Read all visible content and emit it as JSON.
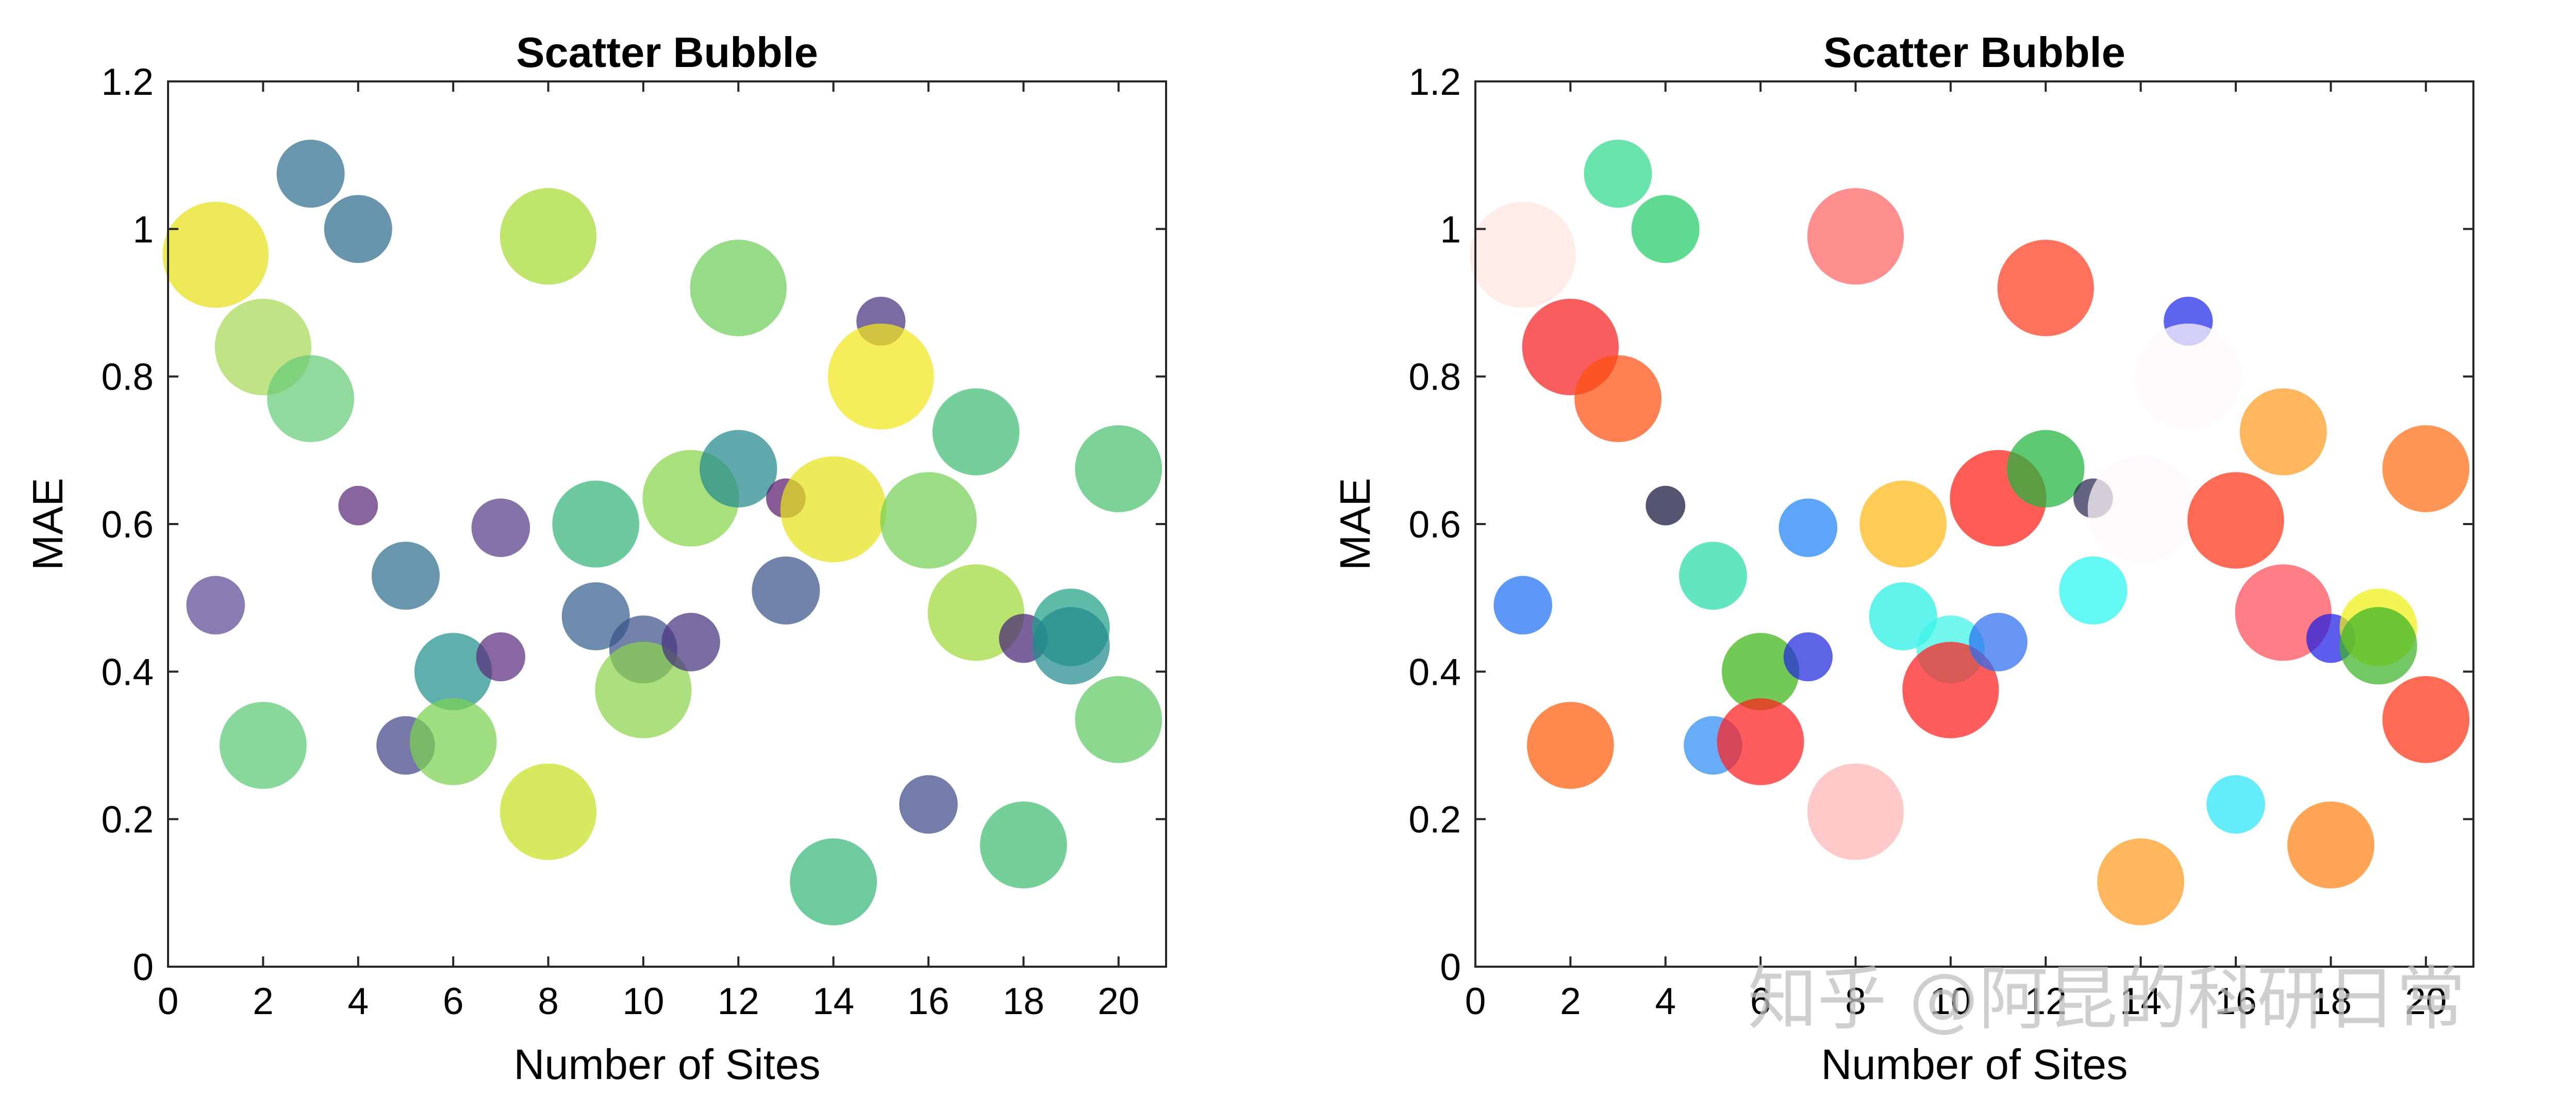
{
  "watermark": {
    "text": "知乎 @阿昆的科研日常",
    "color": "#bfbfbf"
  },
  "chart_data": [
    {
      "type": "scatter",
      "title": "Scatter Bubble",
      "xlabel": "Number of Sites",
      "ylabel": "MAE",
      "xlim": [
        0,
        21
      ],
      "ylim": [
        0,
        1.2
      ],
      "xticks": [
        "0",
        "2",
        "4",
        "6",
        "8",
        "10",
        "12",
        "14",
        "16",
        "18",
        "20"
      ],
      "yticks": [
        "0",
        "0.2",
        "0.4",
        "0.6",
        "0.8",
        "1",
        "1.2"
      ],
      "grid": false,
      "points": [
        {
          "x": 1,
          "y": 0.965,
          "size": 9,
          "color": "#e6e019"
        },
        {
          "x": 1,
          "y": 0.49,
          "size": 4,
          "color": "#5b4a95"
        },
        {
          "x": 2,
          "y": 0.84,
          "size": 8,
          "color": "#a6d856"
        },
        {
          "x": 2,
          "y": 0.3,
          "size": 7,
          "color": "#5ac775"
        },
        {
          "x": 3,
          "y": 1.075,
          "size": 5,
          "color": "#2f6f8e"
        },
        {
          "x": 3,
          "y": 0.77,
          "size": 7,
          "color": "#66cc77"
        },
        {
          "x": 4,
          "y": 1.0,
          "size": 5,
          "color": "#2e6b8c"
        },
        {
          "x": 4,
          "y": 0.625,
          "size": 2,
          "color": "#5a2a7a"
        },
        {
          "x": 5,
          "y": 0.53,
          "size": 5,
          "color": "#2e6e8e"
        },
        {
          "x": 5,
          "y": 0.3,
          "size": 4,
          "color": "#414487"
        },
        {
          "x": 6,
          "y": 0.4,
          "size": 6,
          "color": "#21918c"
        },
        {
          "x": 6,
          "y": 0.305,
          "size": 7,
          "color": "#7ad151"
        },
        {
          "x": 7,
          "y": 0.595,
          "size": 4,
          "color": "#563c89"
        },
        {
          "x": 7,
          "y": 0.42,
          "size": 3,
          "color": "#5a2c7e"
        },
        {
          "x": 8,
          "y": 0.99,
          "size": 8,
          "color": "#a8db34"
        },
        {
          "x": 8,
          "y": 0.21,
          "size": 8,
          "color": "#c8e020"
        },
        {
          "x": 9,
          "y": 0.6,
          "size": 7,
          "color": "#34b679"
        },
        {
          "x": 9,
          "y": 0.475,
          "size": 5,
          "color": "#355f8d"
        },
        {
          "x": 10,
          "y": 0.43,
          "size": 5,
          "color": "#3b528b"
        },
        {
          "x": 10,
          "y": 0.375,
          "size": 8,
          "color": "#8cd24c"
        },
        {
          "x": 11,
          "y": 0.635,
          "size": 8,
          "color": "#86d549"
        },
        {
          "x": 11,
          "y": 0.44,
          "size": 4,
          "color": "#46337e"
        },
        {
          "x": 12,
          "y": 0.92,
          "size": 8,
          "color": "#6ccd5a"
        },
        {
          "x": 12,
          "y": 0.675,
          "size": 6,
          "color": "#23898e"
        },
        {
          "x": 13,
          "y": 0.51,
          "size": 5,
          "color": "#3a538b"
        },
        {
          "x": 13,
          "y": 0.635,
          "size": 2,
          "color": "#5a1a6e"
        },
        {
          "x": 14,
          "y": 0.62,
          "size": 9,
          "color": "#e7e31a"
        },
        {
          "x": 14,
          "y": 0.115,
          "size": 7,
          "color": "#35b779"
        },
        {
          "x": 15,
          "y": 0.875,
          "size": 3,
          "color": "#46327e"
        },
        {
          "x": 15,
          "y": 0.8,
          "size": 9,
          "color": "#f2e61a"
        },
        {
          "x": 16,
          "y": 0.605,
          "size": 8,
          "color": "#75d054"
        },
        {
          "x": 16,
          "y": 0.22,
          "size": 4,
          "color": "#3e4a89"
        },
        {
          "x": 17,
          "y": 0.725,
          "size": 7,
          "color": "#3fbc73"
        },
        {
          "x": 17,
          "y": 0.48,
          "size": 8,
          "color": "#a0da39"
        },
        {
          "x": 18,
          "y": 0.445,
          "size": 3,
          "color": "#482677"
        },
        {
          "x": 18,
          "y": 0.165,
          "size": 7,
          "color": "#40bd72"
        },
        {
          "x": 19,
          "y": 0.46,
          "size": 6,
          "color": "#1fa187"
        },
        {
          "x": 19,
          "y": 0.435,
          "size": 6,
          "color": "#238a8d"
        },
        {
          "x": 20,
          "y": 0.675,
          "size": 7,
          "color": "#4ac16d"
        },
        {
          "x": 20,
          "y": 0.335,
          "size": 7,
          "color": "#5ec962"
        }
      ]
    },
    {
      "type": "scatter",
      "title": "Scatter Bubble",
      "xlabel": "Number of Sites",
      "ylabel": "MAE",
      "xlim": [
        0,
        21
      ],
      "ylim": [
        0,
        1.2
      ],
      "xticks": [
        "0",
        "2",
        "4",
        "6",
        "8",
        "10",
        "12",
        "14",
        "16",
        "18",
        "20"
      ],
      "yticks": [
        "0",
        "0.2",
        "0.4",
        "0.6",
        "0.8",
        "1",
        "1.2"
      ],
      "grid": false,
      "points": [
        {
          "x": 1,
          "y": 0.965,
          "size": 9,
          "color": "#ffe4e1"
        },
        {
          "x": 1,
          "y": 0.49,
          "size": 4,
          "color": "#1e6ff5"
        },
        {
          "x": 2,
          "y": 0.84,
          "size": 8,
          "color": "#f52020"
        },
        {
          "x": 2,
          "y": 0.3,
          "size": 7,
          "color": "#ff5a0a"
        },
        {
          "x": 3,
          "y": 1.075,
          "size": 5,
          "color": "#2ed88c"
        },
        {
          "x": 3,
          "y": 0.77,
          "size": 7,
          "color": "#ff5010"
        },
        {
          "x": 4,
          "y": 1.0,
          "size": 5,
          "color": "#20cc66"
        },
        {
          "x": 4,
          "y": 0.625,
          "size": 2,
          "color": "#14143c"
        },
        {
          "x": 5,
          "y": 0.53,
          "size": 5,
          "color": "#26dca8"
        },
        {
          "x": 5,
          "y": 0.3,
          "size": 4,
          "color": "#2e8cf5"
        },
        {
          "x": 6,
          "y": 0.4,
          "size": 6,
          "color": "#3cb414"
        },
        {
          "x": 6,
          "y": 0.305,
          "size": 7,
          "color": "#ff1e1e"
        },
        {
          "x": 7,
          "y": 0.595,
          "size": 4,
          "color": "#1e82f5"
        },
        {
          "x": 7,
          "y": 0.42,
          "size": 3,
          "color": "#1e28dc"
        },
        {
          "x": 8,
          "y": 0.99,
          "size": 8,
          "color": "#ff6464"
        },
        {
          "x": 8,
          "y": 0.21,
          "size": 8,
          "color": "#ffb4b4"
        },
        {
          "x": 9,
          "y": 0.6,
          "size": 7,
          "color": "#ffb914"
        },
        {
          "x": 9,
          "y": 0.475,
          "size": 5,
          "color": "#22f0e6"
        },
        {
          "x": 10,
          "y": 0.43,
          "size": 5,
          "color": "#3cf5e6"
        },
        {
          "x": 10,
          "y": 0.375,
          "size": 8,
          "color": "#ff1e1e"
        },
        {
          "x": 11,
          "y": 0.635,
          "size": 8,
          "color": "#ff1e14"
        },
        {
          "x": 11,
          "y": 0.44,
          "size": 4,
          "color": "#2d6ef0"
        },
        {
          "x": 12,
          "y": 0.92,
          "size": 8,
          "color": "#ff3c1e"
        },
        {
          "x": 12,
          "y": 0.675,
          "size": 6,
          "color": "#1eb43c"
        },
        {
          "x": 13,
          "y": 0.51,
          "size": 5,
          "color": "#28f5f0"
        },
        {
          "x": 13,
          "y": 0.635,
          "size": 2,
          "color": "#282850"
        },
        {
          "x": 14,
          "y": 0.62,
          "size": 9,
          "color": "#fff6fa"
        },
        {
          "x": 14,
          "y": 0.115,
          "size": 7,
          "color": "#ff9a1e"
        },
        {
          "x": 15,
          "y": 0.875,
          "size": 3,
          "color": "#1e28e6"
        },
        {
          "x": 15,
          "y": 0.8,
          "size": 9,
          "color": "#fffafc"
        },
        {
          "x": 16,
          "y": 0.605,
          "size": 8,
          "color": "#ff3214"
        },
        {
          "x": 16,
          "y": 0.22,
          "size": 4,
          "color": "#28e6f5"
        },
        {
          "x": 17,
          "y": 0.725,
          "size": 7,
          "color": "#ff9a1e"
        },
        {
          "x": 17,
          "y": 0.48,
          "size": 8,
          "color": "#ff4b55"
        },
        {
          "x": 18,
          "y": 0.445,
          "size": 3,
          "color": "#1e1ee6"
        },
        {
          "x": 18,
          "y": 0.165,
          "size": 7,
          "color": "#ff8214"
        },
        {
          "x": 19,
          "y": 0.46,
          "size": 6,
          "color": "#f0f014"
        },
        {
          "x": 19,
          "y": 0.435,
          "size": 6,
          "color": "#3cb428"
        },
        {
          "x": 20,
          "y": 0.675,
          "size": 7,
          "color": "#ff6e14"
        },
        {
          "x": 20,
          "y": 0.335,
          "size": 7,
          "color": "#ff3214"
        }
      ]
    }
  ]
}
